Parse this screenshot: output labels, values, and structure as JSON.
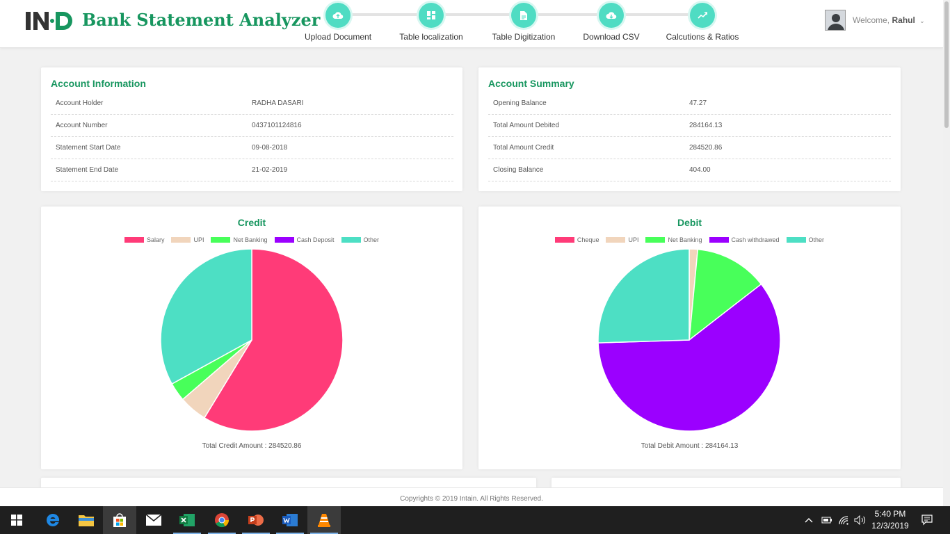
{
  "header": {
    "title": "Bank Statement Analyzer",
    "logo_text": "InD",
    "steps": [
      {
        "label": "Upload Document",
        "icon": "cloud-upload-icon"
      },
      {
        "label": "Table localization",
        "icon": "grid-icon"
      },
      {
        "label": "Table Digitization",
        "icon": "document-icon"
      },
      {
        "label": "Download CSV",
        "icon": "cloud-download-icon"
      },
      {
        "label": "Calcutions & Ratios",
        "icon": "trend-icon"
      }
    ],
    "user": {
      "welcome": "Welcome,",
      "name": "Rahul"
    }
  },
  "account_info": {
    "title": "Account Information",
    "rows": [
      {
        "key": "Account Holder",
        "value": "RADHA DASARI"
      },
      {
        "key": "Account Number",
        "value": "0437101124816"
      },
      {
        "key": "Statement Start Date",
        "value": "09-08-2018"
      },
      {
        "key": "Statement End Date",
        "value": "21-02-2019"
      }
    ]
  },
  "account_summary": {
    "title": "Account Summary",
    "rows": [
      {
        "key": "Opening Balance",
        "value": "47.27"
      },
      {
        "key": "Total Amount Debited",
        "value": "284164.13"
      },
      {
        "key": "Total Amount Credit",
        "value": "284520.86"
      },
      {
        "key": "Closing Balance",
        "value": "404.00"
      }
    ]
  },
  "chart_data": [
    {
      "type": "pie",
      "title": "Credit",
      "labels": [
        "Salary",
        "UPI",
        "Net Banking",
        "Cash Deposit",
        "Other"
      ],
      "colors": [
        "#ff3b78",
        "#f1d5bc",
        "#48ff5a",
        "#9b00ff",
        "#4ddfc4"
      ],
      "values": [
        58.7,
        5.0,
        3.3,
        0,
        33.0
      ],
      "total_label": "Total Credit Amount : 284520.86"
    },
    {
      "type": "pie",
      "title": "Debit",
      "labels": [
        "Cheque",
        "UPI",
        "Net Banking",
        "Cash withdrawed",
        "Other"
      ],
      "colors": [
        "#ff3b78",
        "#f1d5bc",
        "#48ff5a",
        "#9b00ff",
        "#4ddfc4"
      ],
      "values": [
        0,
        1.5,
        13.0,
        60.0,
        25.5
      ],
      "total_label": "Total Debit Amount : 284164.13"
    }
  ],
  "footer": {
    "text": "Copyrights © 2019 Intain. All Rights Reserved."
  },
  "taskbar": {
    "time": "5:40 PM",
    "date": "12/3/2019"
  }
}
